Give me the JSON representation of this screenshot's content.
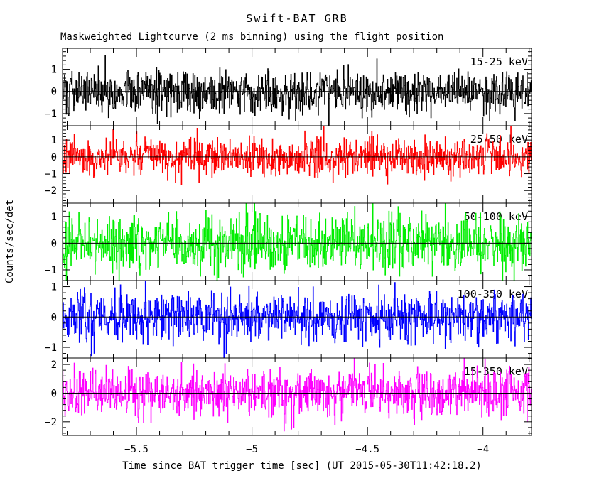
{
  "figure": {
    "title": "Swift-BAT GRB",
    "subtitle": "Maskweighted Lightcurve (2 ms binning) using the flight position"
  },
  "chart_data": {
    "type": "line",
    "subtype": "stacked-histogram-lightcurve",
    "title": "Swift-BAT GRB",
    "subtitle": "Maskweighted Lightcurve (2 ms binning) using the flight position",
    "xlabel": "Time since BAT trigger time [sec] (UT 2015-05-30T11:42:18.2)",
    "ylabel": "Counts/sec/det",
    "xlim": [
      -5.82,
      -3.79
    ],
    "x_major_ticks": [
      -5.5,
      -5.0,
      -4.5,
      -4.0
    ],
    "x_major_tick_labels": [
      "−5.5",
      "−5",
      "−4.5",
      "−4"
    ],
    "x_minor_step": 0.1,
    "bin_width_sec": 0.002,
    "n_bins": 1015,
    "grid": "off",
    "background_color": "#ffffff",
    "frame_color": "#000000",
    "zero_line_color": "#000000",
    "legend_position": "inside-top-right-per-panel",
    "panels": [
      {
        "label": "15-25 keV",
        "color": "#000000",
        "ylim": [
          -1.55,
          1.95
        ],
        "yticks": [
          -1,
          0,
          1
        ],
        "y_minor_step": 0.2,
        "noise": {
          "distribution": "gaussian",
          "mean": 0,
          "std": 0.5,
          "seed": 101
        }
      },
      {
        "label": "25-50 keV",
        "color": "#ff0000",
        "ylim": [
          -2.75,
          1.85
        ],
        "yticks": [
          -2,
          -1,
          0,
          1
        ],
        "y_minor_step": 0.2,
        "noise": {
          "distribution": "gaussian",
          "mean": 0,
          "std": 0.55,
          "seed": 202
        }
      },
      {
        "label": "50-100 keV",
        "color": "#00ee00",
        "ylim": [
          -1.4,
          1.5
        ],
        "yticks": [
          -1,
          0,
          1
        ],
        "y_minor_step": 0.2,
        "noise": {
          "distribution": "gaussian",
          "mean": 0,
          "std": 0.5,
          "seed": 303
        }
      },
      {
        "label": "100-350 keV",
        "color": "#0000ff",
        "ylim": [
          -1.35,
          1.2
        ],
        "yticks": [
          -1,
          0,
          1
        ],
        "y_minor_step": 0.2,
        "noise": {
          "distribution": "gaussian",
          "mean": 0,
          "std": 0.42,
          "seed": 404
        }
      },
      {
        "label": "15-350 keV",
        "color": "#ff00ff",
        "ylim": [
          -2.95,
          2.45
        ],
        "yticks": [
          -2,
          0,
          2
        ],
        "y_minor_step": 0.4,
        "noise": {
          "distribution": "gaussian",
          "mean": 0,
          "std": 0.85,
          "seed": 505
        }
      }
    ]
  }
}
